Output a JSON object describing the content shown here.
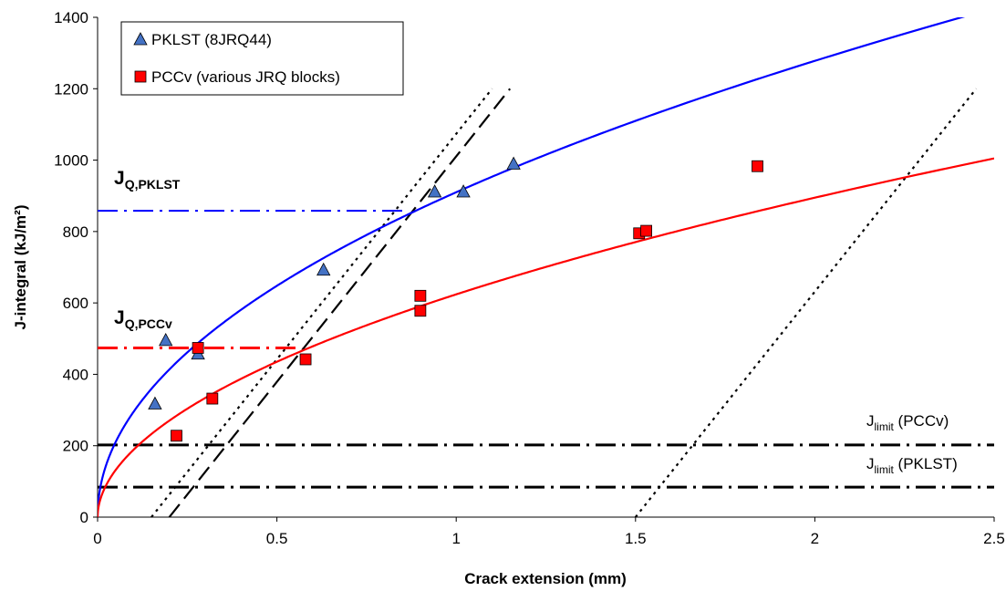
{
  "chart_data": {
    "type": "scatter",
    "xlabel": "Crack extension (mm)",
    "ylabel": "J-integral (kJ/m²)",
    "xlim": [
      0,
      2.5
    ],
    "ylim": [
      0,
      1400
    ],
    "xticks": [
      "0",
      "0.5",
      "1",
      "1.5",
      "2",
      "2.5"
    ],
    "yticks": [
      "0",
      "200",
      "400",
      "600",
      "800",
      "1000",
      "1200",
      "1400"
    ],
    "grid": false,
    "legend_position": "top-left",
    "series": [
      {
        "name": "PKLST (8JRQ44)",
        "marker": "triangle",
        "color": "#4472c4",
        "x": [
          0.16,
          0.19,
          0.28,
          0.63,
          0.94,
          1.02,
          1.16
        ],
        "y": [
          318,
          496,
          458,
          693,
          912,
          912,
          990
        ]
      },
      {
        "name": "PCCv (various JRQ blocks)",
        "marker": "square",
        "color": "#ff0000",
        "x": [
          0.22,
          0.28,
          0.32,
          0.58,
          0.9,
          0.9,
          1.51,
          1.53,
          1.84
        ],
        "y": [
          228,
          474,
          332,
          442,
          620,
          578,
          795,
          802,
          983
        ]
      }
    ],
    "fits": [
      {
        "series": "PKLST (8JRQ44)",
        "color": "#0000ff",
        "C": 910,
        "m": 0.49,
        "x_max": 2.5
      },
      {
        "series": "PCCv (various JRQ blocks)",
        "color": "#ff0000",
        "C": 624,
        "m": 0.52,
        "x_max": 2.5
      }
    ],
    "offset_lines": [
      {
        "style": "dotted",
        "x0": 0.15,
        "x1": 1.1,
        "y1": 1200
      },
      {
        "style": "dashed",
        "x0": 0.2,
        "x1": 1.15,
        "y1": 1200
      },
      {
        "style": "dotted",
        "x0": 1.5,
        "x1": 2.45,
        "y1": 1200
      }
    ],
    "jq_lines": [
      {
        "label": "J",
        "sub": "Q,PKLST",
        "y": 858,
        "x_end": 0.86,
        "color": "#0000ff"
      },
      {
        "label": "J",
        "sub": "Q,PCCv",
        "y": 474,
        "x_end": 0.57,
        "color": "#ff0000"
      }
    ],
    "limit_lines": [
      {
        "label": "J",
        "sub": "limit",
        "suffix": " (PCCv)",
        "y": 202
      },
      {
        "label": "J",
        "sub": "limit",
        "suffix": " (PKLST)",
        "y": 84
      }
    ]
  }
}
